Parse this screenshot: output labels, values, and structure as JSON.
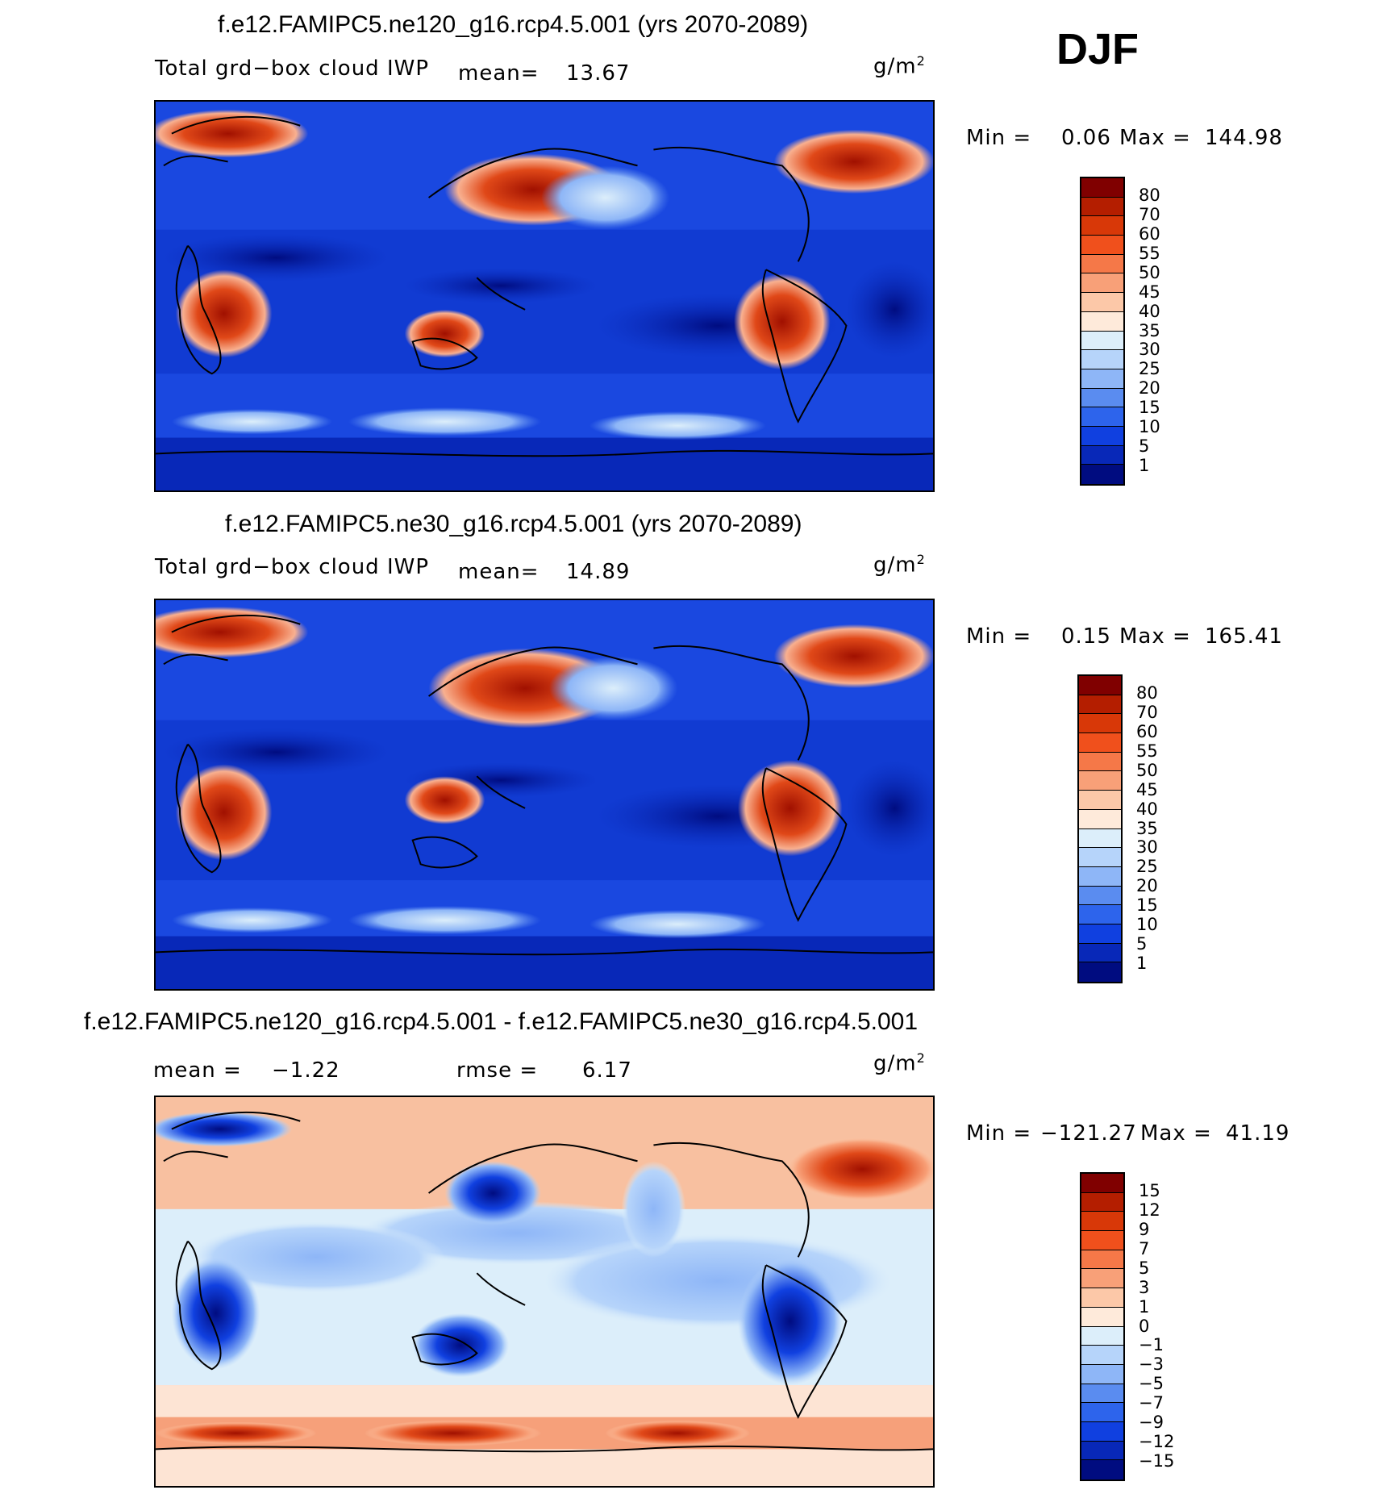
{
  "season": "DJF",
  "panels": [
    {
      "title": "f.e12.FAMIPC5.ne120_g16.rcp4.5.001 (yrs 2070-2089)",
      "variable": "Total grd−box cloud IWP",
      "mean_label": "mean=",
      "mean_value": "13.67",
      "unit": "g/m",
      "unit_exp": "2",
      "min_label": "Min =",
      "min_value": "0.06",
      "max_label": "Max =",
      "max_value": "144.98",
      "colorbar_labels": [
        "80",
        "70",
        "60",
        "55",
        "50",
        "45",
        "40",
        "35",
        "30",
        "25",
        "20",
        "15",
        "10",
        "5",
        "1"
      ]
    },
    {
      "title": "f.e12.FAMIPC5.ne30_g16.rcp4.5.001 (yrs 2070-2089)",
      "variable": "Total grd−box cloud IWP",
      "mean_label": "mean=",
      "mean_value": "14.89",
      "unit": "g/m",
      "unit_exp": "2",
      "min_label": "Min =",
      "min_value": "0.15",
      "max_label": "Max =",
      "max_value": "165.41",
      "colorbar_labels": [
        "80",
        "70",
        "60",
        "55",
        "50",
        "45",
        "40",
        "35",
        "30",
        "25",
        "20",
        "15",
        "10",
        "5",
        "1"
      ]
    },
    {
      "title": "f.e12.FAMIPC5.ne120_g16.rcp4.5.001 - f.e12.FAMIPC5.ne30_g16.rcp4.5.001",
      "mean_label": "mean =",
      "mean_value": "−1.22",
      "rmse_label": "rmse =",
      "rmse_value": "6.17",
      "unit": "g/m",
      "unit_exp": "2",
      "min_label": "Min =",
      "min_value": "−121.27",
      "max_label": "Max =",
      "max_value": "41.19",
      "colorbar_labels": [
        "15",
        "12",
        "9",
        "7",
        "5",
        "3",
        "1",
        "0",
        "−1",
        "−3",
        "−5",
        "−7",
        "−9",
        "−12",
        "−15"
      ]
    }
  ],
  "colors": {
    "abs_scale": [
      "#800000",
      "#b41e00",
      "#d83808",
      "#f0501c",
      "#f57848",
      "#f8a078",
      "#fcc8a8",
      "#feeada",
      "#dceefa",
      "#b6d4fa",
      "#8eb6f7",
      "#5a8cf0",
      "#2d64ec",
      "#1040e0",
      "#0828b8",
      "#000c80"
    ],
    "diff_scale": [
      "#800000",
      "#b41e00",
      "#d83808",
      "#f0501c",
      "#f57848",
      "#f8a078",
      "#fcc8a8",
      "#feeada",
      "#dceefa",
      "#b6d4fa",
      "#8eb6f7",
      "#5a8cf0",
      "#2d64ec",
      "#1040e0",
      "#0828b8",
      "#000c80"
    ]
  }
}
